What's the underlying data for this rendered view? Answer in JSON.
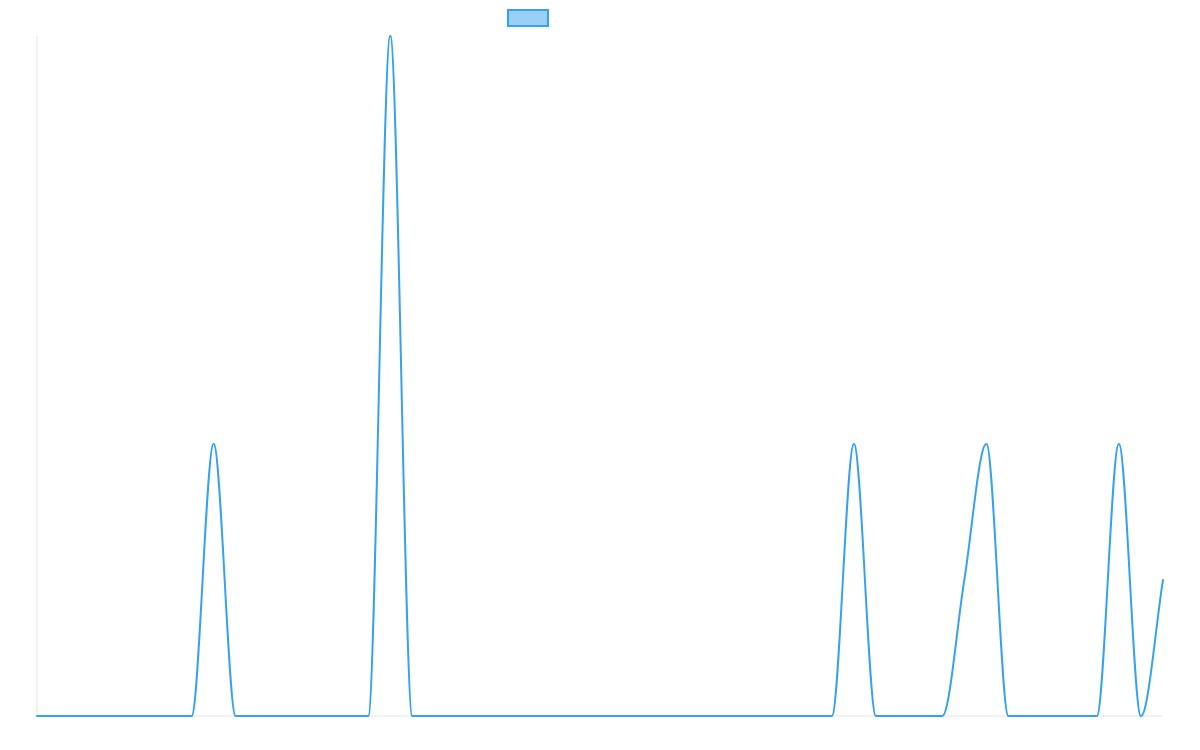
{
  "chart_data": {
    "type": "line",
    "title": "",
    "xlabel": "",
    "ylabel": "",
    "x": [
      0,
      1,
      2,
      3,
      4,
      5,
      6,
      7,
      8,
      9,
      10,
      11,
      12,
      13,
      14,
      15,
      16,
      17,
      18,
      19,
      20,
      21,
      22,
      23,
      24,
      25,
      26,
      27,
      28,
      29,
      30,
      31,
      32,
      33,
      34,
      35,
      36,
      37,
      38,
      39,
      40,
      41,
      42,
      43,
      44,
      45,
      46,
      47,
      48,
      49,
      50,
      51
    ],
    "xlim": [
      0,
      51
    ],
    "ylim": [
      0,
      5
    ],
    "grid": false,
    "legend_position": "top-center",
    "series": [
      {
        "name": "",
        "color": "#36a2eb",
        "fill": "#9ad0f5",
        "values": [
          0,
          0,
          0,
          0,
          0,
          0,
          0,
          0,
          2,
          0,
          0,
          0,
          0,
          0,
          0,
          0,
          5,
          0,
          0,
          0,
          0,
          0,
          0,
          0,
          0,
          0,
          0,
          0,
          0,
          0,
          0,
          0,
          0,
          0,
          0,
          0,
          0,
          2,
          0,
          0,
          0,
          0,
          1,
          2,
          0,
          0,
          0,
          0,
          0,
          2,
          0,
          1
        ]
      }
    ]
  }
}
